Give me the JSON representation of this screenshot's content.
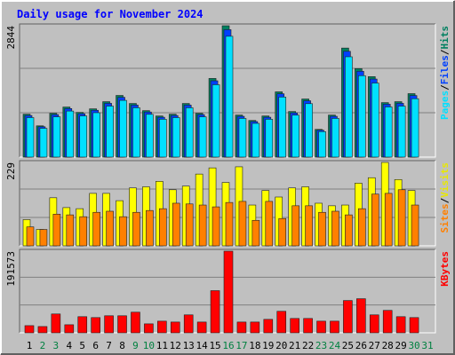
{
  "chart_data": {
    "type": "bar",
    "title": "Daily usage for November 2024",
    "categories": [
      "1",
      "2",
      "3",
      "4",
      "5",
      "6",
      "7",
      "8",
      "9",
      "10",
      "11",
      "12",
      "13",
      "14",
      "15",
      "16",
      "17",
      "18",
      "19",
      "20",
      "21",
      "22",
      "23",
      "24",
      "25",
      "26",
      "27",
      "28",
      "29",
      "30",
      "31"
    ],
    "category_colors": [
      "#000000",
      "#008040",
      "#008040",
      "#000000",
      "#000000",
      "#000000",
      "#000000",
      "#000000",
      "#008040",
      "#008040",
      "#000000",
      "#000000",
      "#000000",
      "#000000",
      "#000000",
      "#008040",
      "#008040",
      "#000000",
      "#000000",
      "#000000",
      "#000000",
      "#000000",
      "#008040",
      "#008040",
      "#000000",
      "#000000",
      "#000000",
      "#000000",
      "#000000",
      "#008040",
      "#008040"
    ],
    "legend_separator": "/",
    "grid": true,
    "panels": [
      {
        "ylim": [
          0,
          2844
        ],
        "yticks": [
          2844
        ],
        "series": [
          {
            "name": "Hits",
            "color": "#008060",
            "values": [
              929,
              677,
              948,
              1084,
              968,
              1045,
              1200,
              1335,
              1161,
              1006,
              890,
              929,
              1161,
              948,
              1703,
              2844,
              910,
              793,
              890,
              1413,
              987,
              1258,
              600,
              910,
              2361,
              1916,
              1742,
              1180,
              1200,
              1374,
              null
            ]
          },
          {
            "name": "Files",
            "color": "#0040ff",
            "values": [
              901,
              657,
              920,
              1051,
              939,
              1014,
              1164,
              1295,
              1126,
              976,
              863,
              901,
              1126,
              920,
              1652,
              2759,
              883,
              769,
              863,
              1371,
              957,
              1220,
              582,
              883,
              2290,
              1859,
              1690,
              1145,
              1164,
              1333,
              null
            ]
          },
          {
            "name": "Pages",
            "color": "#00e0ff",
            "values": [
              855,
              623,
              872,
              997,
              891,
              961,
              1104,
              1228,
              1068,
              926,
              819,
              855,
              1068,
              872,
              1567,
              2616,
              837,
              730,
              819,
              1300,
              908,
              1157,
              552,
              837,
              2172,
              1763,
              1603,
              1086,
              1104,
              1264,
              null
            ]
          }
        ]
      },
      {
        "ylim": [
          0,
          229
        ],
        "yticks": [
          229
        ],
        "series": [
          {
            "name": "Visits",
            "color": "#ffff00",
            "values": [
              72,
              45,
              132,
              105,
              102,
              144,
              144,
              124,
              159,
              162,
              177,
              154,
              164,
              197,
              214,
              174,
              217,
              112,
              152,
              134,
              159,
              162,
              117,
              110,
              112,
              172,
              187,
              229,
              182,
              152,
              null
            ]
          },
          {
            "name": "Sites",
            "color": "#ff8000",
            "values": [
              52,
              45,
              87,
              85,
              80,
              92,
              95,
              80,
              92,
              97,
              102,
              117,
              115,
              112,
              107,
              119,
              122,
              70,
              122,
              75,
              110,
              110,
              92,
              95,
              85,
              102,
              142,
              144,
              154,
              112,
              null
            ]
          }
        ]
      },
      {
        "ylim": [
          0,
          191573
        ],
        "yticks": [
          191573
        ],
        "series": [
          {
            "name": "KBytes",
            "color": "#ff0000",
            "values": [
              16840,
              14735,
              44205,
              18945,
              37890,
              35785,
              39995,
              39995,
              48415,
              21050,
              27365,
              25260,
              42100,
              25260,
              98935,
              191573,
              25260,
              25260,
              31575,
              50520,
              33680,
              33680,
              27365,
              27365,
              75780,
              79990,
              42100,
              52625,
              37890,
              35785,
              null
            ]
          }
        ]
      }
    ]
  }
}
